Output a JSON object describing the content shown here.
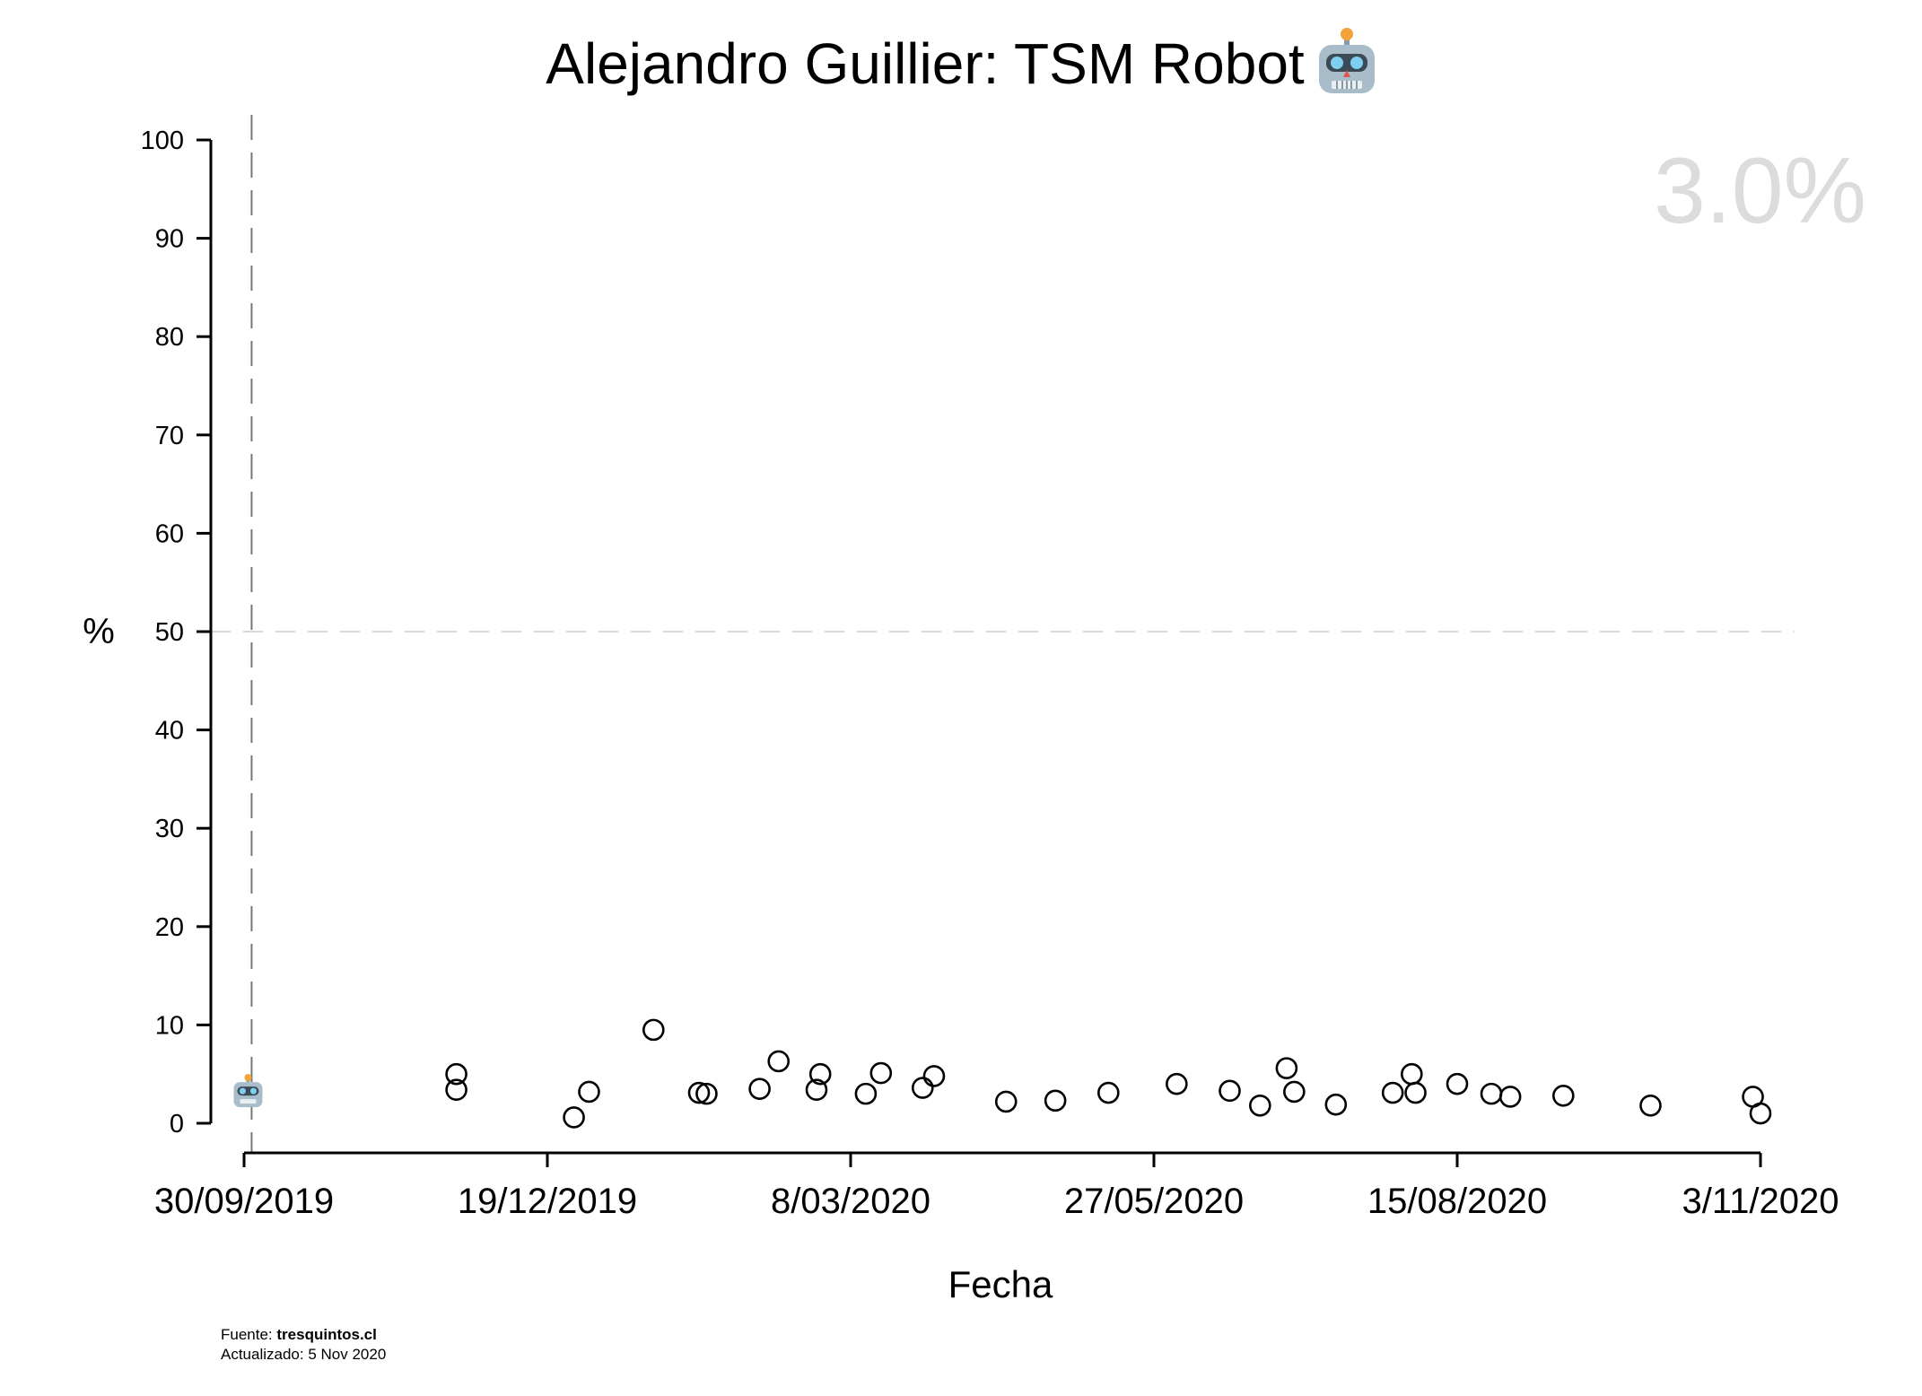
{
  "title": "Alejandro Guillier: TSM Robot",
  "title_icon": "robot-face-icon",
  "big_value": "3.0%",
  "footer": {
    "source_label": "Fuente:",
    "source_site": "tresquintos.cl",
    "updated": "Actualizado: 5 Nov 2020"
  },
  "chart_data": {
    "type": "scatter",
    "title": "Alejandro Guillier: TSM Robot",
    "xlabel": "Fecha",
    "ylabel": "%",
    "ylim": [
      0,
      100
    ],
    "xlim": [
      "2019-09-30",
      "2020-11-03"
    ],
    "yticks": [
      0,
      10,
      20,
      30,
      40,
      50,
      60,
      70,
      80,
      90,
      100
    ],
    "xticks": [
      {
        "date": "2019-09-30",
        "label": "30/09/2019"
      },
      {
        "date": "2019-12-19",
        "label": "19/12/2019"
      },
      {
        "date": "2020-03-08",
        "label": "8/03/2020"
      },
      {
        "date": "2020-05-27",
        "label": "27/05/2020"
      },
      {
        "date": "2020-08-15",
        "label": "15/08/2020"
      },
      {
        "date": "2020-11-03",
        "label": "3/11/2020"
      }
    ],
    "reference_lines": {
      "horizontal_dashed_y": 50,
      "vertical_dashed_x": "2019-10-02"
    },
    "highlight_marker": {
      "x": "2019-10-02",
      "y": 3.0,
      "icon": "robot-face-icon"
    },
    "grid": false,
    "points": [
      {
        "x": "2019-11-25",
        "y": 5.0
      },
      {
        "x": "2019-11-25",
        "y": 3.4
      },
      {
        "x": "2019-12-26",
        "y": 0.6
      },
      {
        "x": "2019-12-30",
        "y": 3.2
      },
      {
        "x": "2020-01-16",
        "y": 9.5
      },
      {
        "x": "2020-01-28",
        "y": 3.1
      },
      {
        "x": "2020-01-30",
        "y": 3.0
      },
      {
        "x": "2020-02-13",
        "y": 3.5
      },
      {
        "x": "2020-02-18",
        "y": 6.3
      },
      {
        "x": "2020-02-28",
        "y": 3.4
      },
      {
        "x": "2020-02-29",
        "y": 5.0
      },
      {
        "x": "2020-03-12",
        "y": 3.0
      },
      {
        "x": "2020-03-16",
        "y": 5.1
      },
      {
        "x": "2020-03-27",
        "y": 3.6
      },
      {
        "x": "2020-03-30",
        "y": 4.8
      },
      {
        "x": "2020-04-18",
        "y": 2.2
      },
      {
        "x": "2020-05-01",
        "y": 2.3
      },
      {
        "x": "2020-05-15",
        "y": 3.1
      },
      {
        "x": "2020-06-02",
        "y": 4.0
      },
      {
        "x": "2020-06-16",
        "y": 3.3
      },
      {
        "x": "2020-06-24",
        "y": 1.8
      },
      {
        "x": "2020-06-931",
        "y": 5.6
      },
      {
        "x": "2020-07-03",
        "y": 3.2
      },
      {
        "x": "2020-07-14",
        "y": 1.9
      },
      {
        "x": "2020-07-29",
        "y": 3.1
      },
      {
        "x": "2020-08-03",
        "y": 5.0
      },
      {
        "x": "2020-08-04",
        "y": 3.1
      },
      {
        "x": "2020-08-15",
        "y": 4.0
      },
      {
        "x": "2020-08-24",
        "y": 3.0
      },
      {
        "x": "2020-08-29",
        "y": 2.7
      },
      {
        "x": "2020-09-12",
        "y": 2.8
      },
      {
        "x": "2020-10-05",
        "y": 1.8
      },
      {
        "x": "2020-11-01",
        "y": 2.7
      },
      {
        "x": "2020-11-03",
        "y": 1.0
      }
    ]
  }
}
